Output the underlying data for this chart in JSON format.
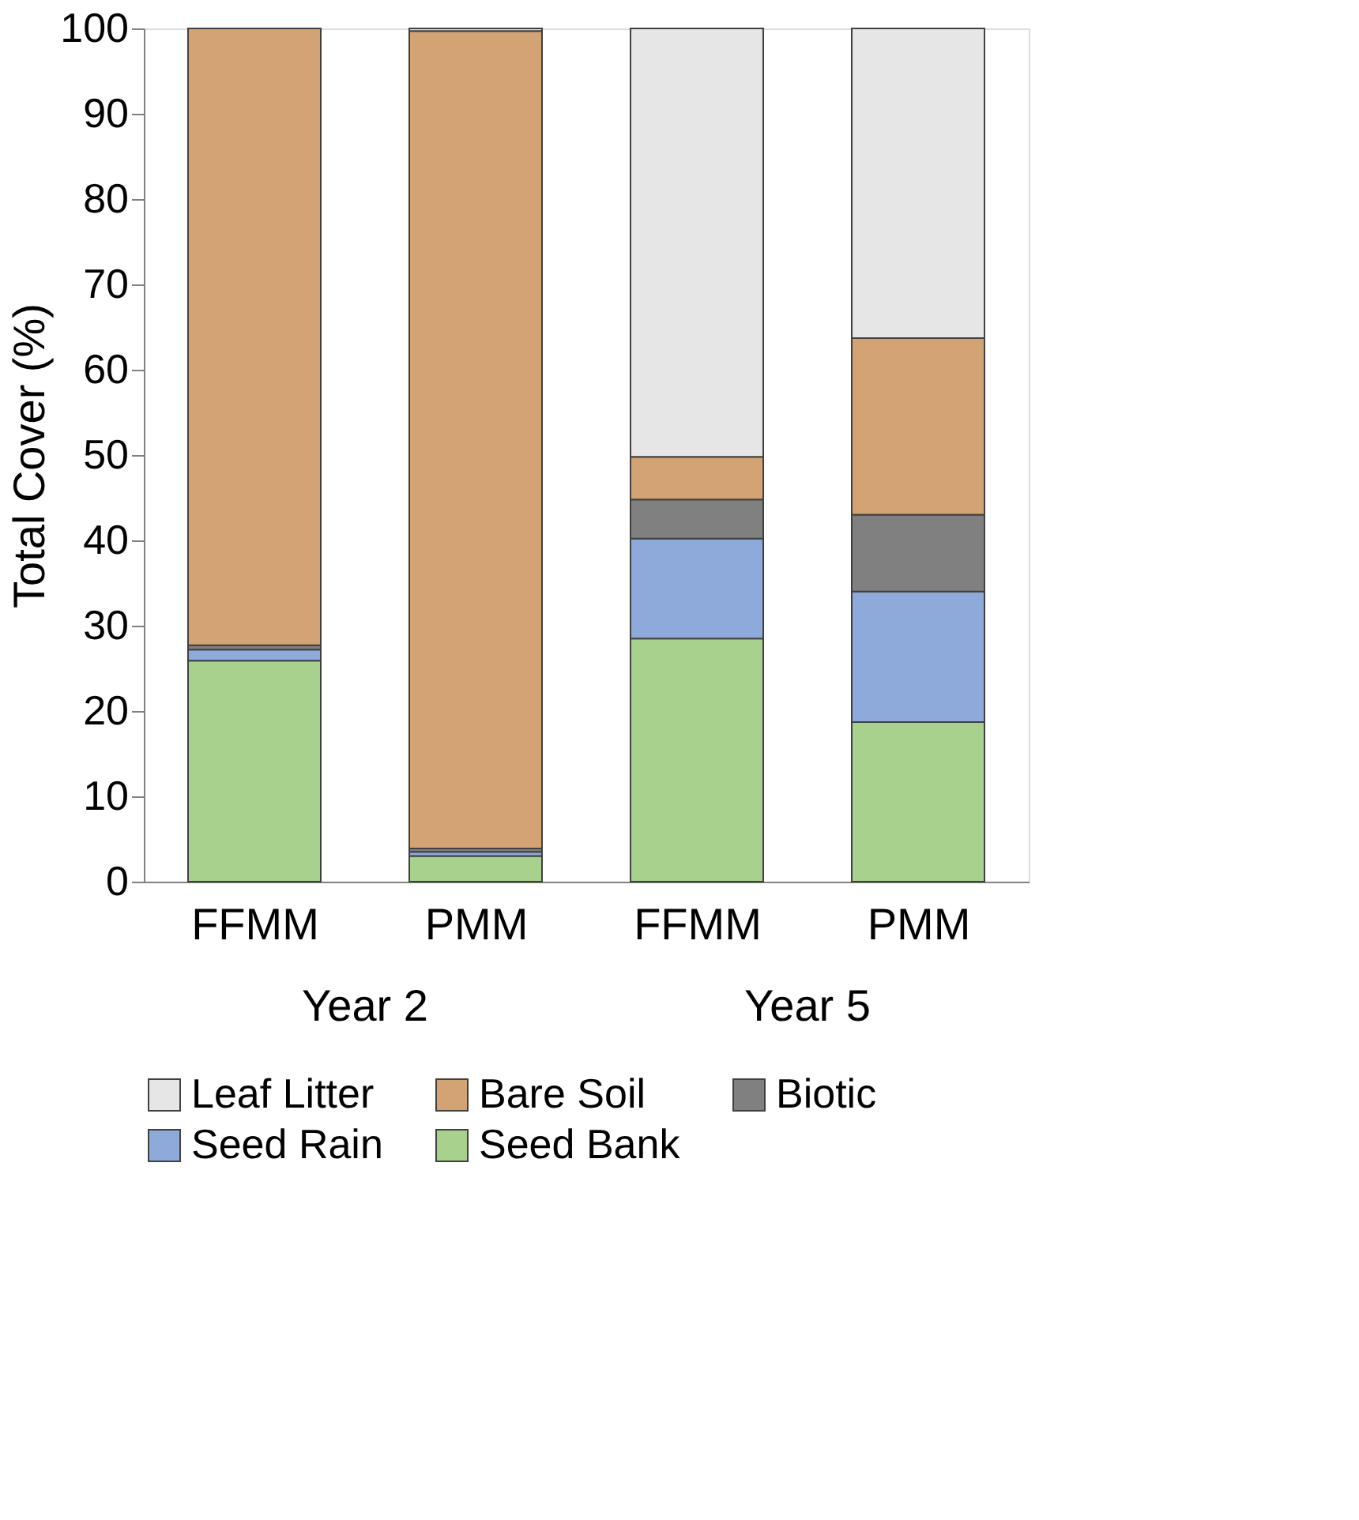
{
  "chart_data": {
    "type": "bar",
    "stacked": true,
    "ylabel": "Total Cover (%)",
    "categories": [
      "FFMM",
      "PMM",
      "FFMM",
      "PMM"
    ],
    "annotations": [
      "Year 2",
      "Year 5"
    ],
    "series": [
      {
        "name": "Seed Bank",
        "color": "#a9d18e",
        "values": [
          25.9,
          3.0,
          28.5,
          18.7
        ]
      },
      {
        "name": "Seed Rain",
        "color": "#8eaadb",
        "values": [
          1.3,
          0.5,
          11.7,
          15.3
        ]
      },
      {
        "name": "Biotic",
        "color": "#808080",
        "values": [
          0.5,
          0.4,
          4.6,
          9.0
        ]
      },
      {
        "name": "Bare Soil",
        "color": "#d4a373",
        "values": [
          72.3,
          95.8,
          5.0,
          20.7
        ]
      },
      {
        "name": "Leaf Litter",
        "color": "#e6e6e6",
        "values": [
          0,
          0.3,
          50.2,
          36.3
        ]
      }
    ],
    "ylim": [
      0,
      100
    ],
    "yticks": [
      0,
      10,
      20,
      30,
      40,
      50,
      60,
      70,
      80,
      90,
      100
    ],
    "grid": false,
    "legend": "bottom"
  }
}
